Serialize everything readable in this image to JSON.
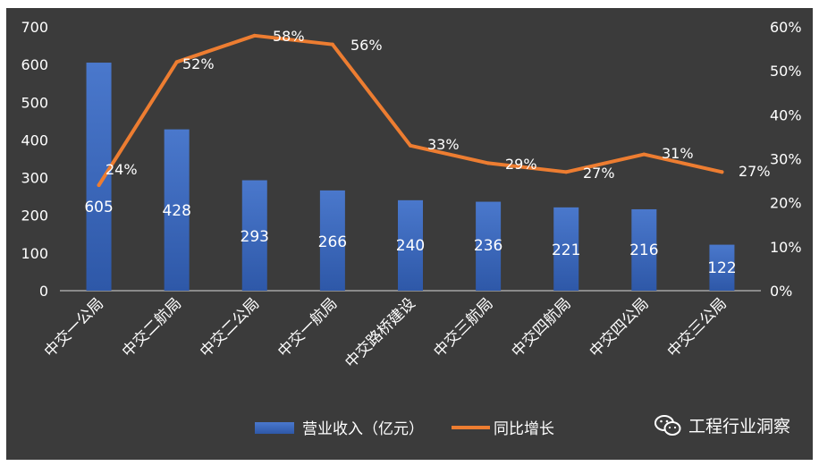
{
  "chart_data": {
    "type": "bar+line",
    "categories": [
      "中交一公局",
      "中交二航局",
      "中交二公局",
      "中交一航局",
      "中交路桥建设",
      "中交三航局",
      "中交四航局",
      "中交四公局",
      "中交三公局"
    ],
    "series": [
      {
        "name": "营业收入（亿元）",
        "type": "bar",
        "axis": "left",
        "values": [
          605,
          428,
          293,
          266,
          240,
          236,
          221,
          216,
          122
        ],
        "labels": [
          "605",
          "428",
          "293",
          "266",
          "240",
          "236",
          "221",
          "216",
          "122"
        ]
      },
      {
        "name": "同比增长",
        "type": "line",
        "axis": "right",
        "values": [
          24,
          52,
          58,
          56,
          33,
          29,
          27,
          31,
          27
        ],
        "labels": [
          "24%",
          "52%",
          "58%",
          "56%",
          "33%",
          "29%",
          "27%",
          "31%",
          "27%"
        ]
      }
    ],
    "ylim_left": [
      0,
      700
    ],
    "yticks_left": [
      "0",
      "100",
      "200",
      "300",
      "400",
      "500",
      "600",
      "700"
    ],
    "ylim_right": [
      0,
      60
    ],
    "yticks_right": [
      "0%",
      "10%",
      "20%",
      "30%",
      "40%",
      "50%",
      "60%"
    ],
    "grid": false,
    "legend": "bottom-center",
    "colors": {
      "background": "#3b3b3b",
      "bar": "#4472c4",
      "bar_dark": "#2a4f95",
      "line": "#ed7d31",
      "text": "#ffffff",
      "axis": "#d9d9d9"
    }
  },
  "watermark": {
    "text": "工程行业洞察",
    "icon": "wechat-icon"
  }
}
